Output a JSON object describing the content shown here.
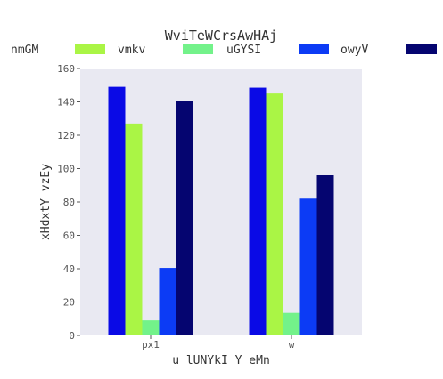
{
  "chart_data": {
    "type": "bar",
    "title": "WviTeWCrsAwHAj",
    "xlabel": "u lUNYkI Y eMn",
    "ylabel": "xHdxtY vzEy",
    "categories": [
      "px1",
      "w"
    ],
    "ylim": [
      0,
      160
    ],
    "yticks": [
      0,
      20,
      40,
      60,
      80,
      100,
      120,
      140,
      160
    ],
    "grid": false,
    "legend_position": "top",
    "series": [
      {
        "name": "nmGM",
        "color": "#0a0ae6",
        "values": [
          149,
          148.5
        ]
      },
      {
        "name": "vmkv",
        "color": "#aaf545",
        "values": [
          127,
          145
        ]
      },
      {
        "name": "uGYSI",
        "color": "#73f28a",
        "values": [
          9,
          13.5
        ]
      },
      {
        "name": "owyV",
        "color": "#0c3bf5",
        "values": [
          40.5,
          82
        ]
      },
      {
        "name": "",
        "color": "#050570",
        "values": [
          140.5,
          96
        ]
      }
    ]
  }
}
